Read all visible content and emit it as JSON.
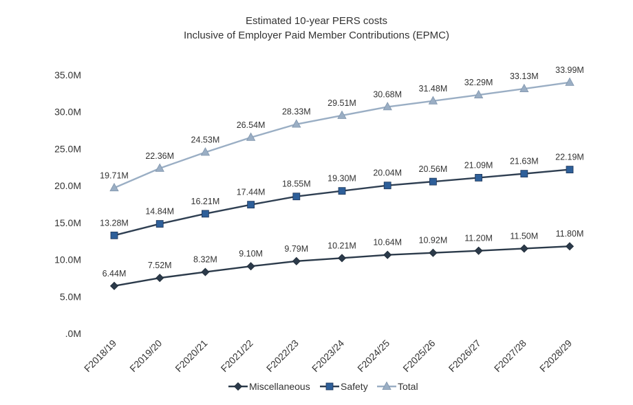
{
  "chart_data": {
    "type": "line",
    "title": "Estimated 10-year PERS costs",
    "subtitle": "Inclusive of Employer Paid Member Contributions (EPMC)",
    "categories": [
      "F2018/19",
      "F2019/20",
      "F2020/21",
      "F2021/22",
      "F2022/23",
      "F2023/24",
      "F2024/25",
      "F2025/26",
      "F2026/27",
      "F2027/28",
      "F2028/29"
    ],
    "yticks": [
      ".0M",
      "5.0M",
      "10.0M",
      "15.0M",
      "20.0M",
      "25.0M",
      "30.0M",
      "35.0M"
    ],
    "ylim": [
      0,
      35
    ],
    "grid": false,
    "legend_position": "bottom",
    "series": [
      {
        "name": "Miscellaneous",
        "marker": "diamond",
        "color": "#2b3a4a",
        "values": [
          6.44,
          7.52,
          8.32,
          9.1,
          9.79,
          10.21,
          10.64,
          10.92,
          11.2,
          11.5,
          11.8
        ],
        "labels": [
          "6.44M",
          "7.52M",
          "8.32M",
          "9.10M",
          "9.79M",
          "10.21M",
          "10.64M",
          "10.92M",
          "11.20M",
          "11.50M",
          "11.80M"
        ]
      },
      {
        "name": "Safety",
        "marker": "square",
        "color": "#2e5f99",
        "line_color": "#2f3f52",
        "values": [
          13.28,
          14.84,
          16.21,
          17.44,
          18.55,
          19.3,
          20.04,
          20.56,
          21.09,
          21.63,
          22.19
        ],
        "labels": [
          "13.28M",
          "14.84M",
          "16.21M",
          "17.44M",
          "18.55M",
          "19.30M",
          "20.04M",
          "20.56M",
          "21.09M",
          "21.63M",
          "22.19M"
        ]
      },
      {
        "name": "Total",
        "marker": "triangle",
        "color": "#9aaec4",
        "values": [
          19.71,
          22.36,
          24.53,
          26.54,
          28.33,
          29.51,
          30.68,
          31.48,
          32.29,
          33.13,
          33.99
        ],
        "labels": [
          "19.71M",
          "22.36M",
          "24.53M",
          "26.54M",
          "28.33M",
          "29.51M",
          "30.68M",
          "31.48M",
          "32.29M",
          "33.13M",
          "33.99M"
        ]
      }
    ]
  }
}
